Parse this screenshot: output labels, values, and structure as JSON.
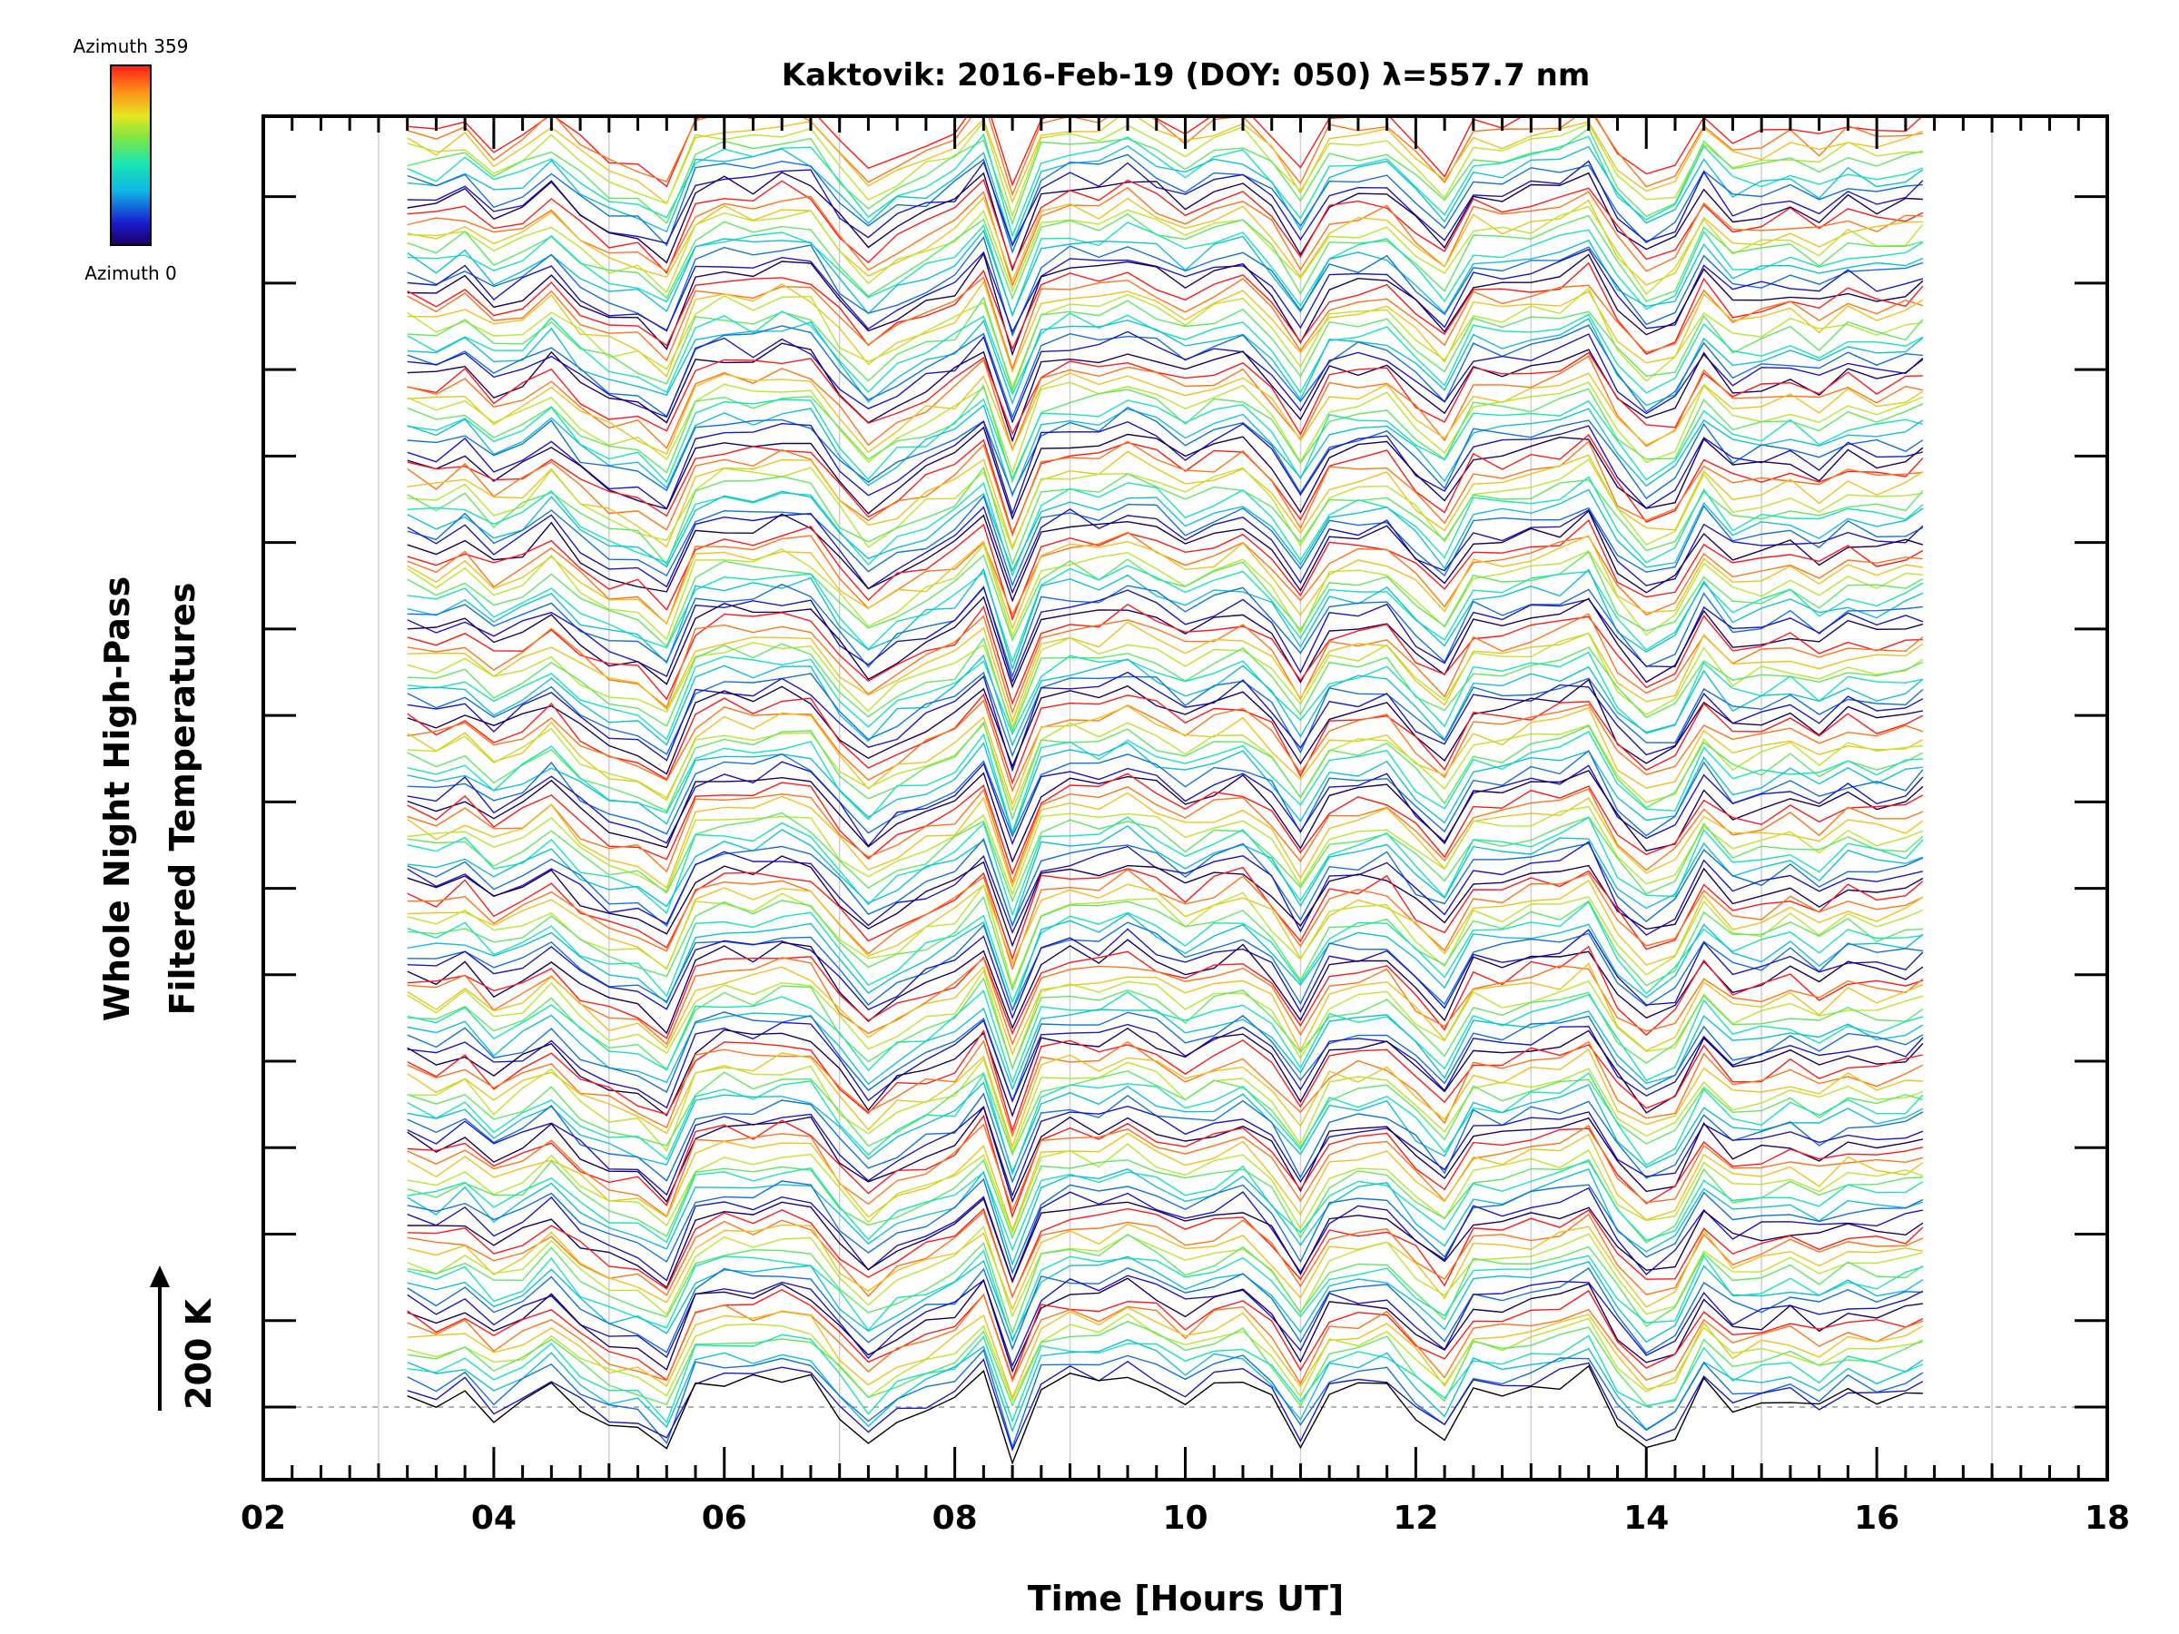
{
  "chart_data": {
    "type": "line",
    "title": "Kaktovik: 2016-Feb-19 (DOY: 050) λ=557.7 nm",
    "xlabel": "Time [Hours UT]",
    "ylabel_line1": "Whole Night High-Pass",
    "ylabel_line2": "Filtered Temperatures",
    "scale_label": "200 K",
    "xlim": [
      2,
      18
    ],
    "x_ticks": [
      "02",
      "04",
      "06",
      "08",
      "10",
      "12",
      "14",
      "16",
      "18"
    ],
    "x_tick_values": [
      2,
      4,
      6,
      8,
      10,
      12,
      14,
      16,
      18
    ],
    "data_time_range": [
      3.25,
      16.4
    ],
    "offset_levels": 15,
    "traces_per_level": 10,
    "colorbar": {
      "label_top": "Azimuth 359",
      "label_bottom": "Azimuth 0",
      "min": 0,
      "max": 359,
      "colormap": "rainbow"
    },
    "common_signal": {
      "times": [
        3.25,
        3.5,
        3.75,
        4.0,
        4.25,
        4.5,
        4.75,
        5.0,
        5.25,
        5.5,
        5.75,
        6.0,
        6.25,
        6.5,
        6.75,
        7.0,
        7.25,
        7.5,
        7.75,
        8.0,
        8.25,
        8.5,
        8.75,
        9.0,
        9.25,
        9.5,
        9.75,
        10.0,
        10.25,
        10.5,
        10.75,
        11.0,
        11.25,
        11.5,
        11.75,
        12.0,
        12.25,
        12.5,
        12.75,
        13.0,
        13.25,
        13.5,
        13.75,
        14.0,
        14.25,
        14.5,
        14.75,
        15.0,
        15.25,
        15.5,
        15.75,
        16.0,
        16.25,
        16.4
      ],
      "values": [
        15,
        5,
        20,
        -10,
        5,
        30,
        -5,
        -25,
        -30,
        -55,
        25,
        35,
        30,
        40,
        35,
        -10,
        -45,
        -20,
        -5,
        10,
        45,
        -60,
        25,
        35,
        30,
        45,
        30,
        10,
        25,
        35,
        5,
        -45,
        15,
        20,
        25,
        -10,
        -40,
        20,
        15,
        25,
        30,
        45,
        -15,
        -50,
        -35,
        30,
        -5,
        0,
        10,
        -5,
        15,
        5,
        10,
        20
      ]
    },
    "colors": {
      "background": "#ffffff",
      "axes": "#000000",
      "gridlines": "#d0d0d0",
      "baseline": "#999999"
    }
  }
}
